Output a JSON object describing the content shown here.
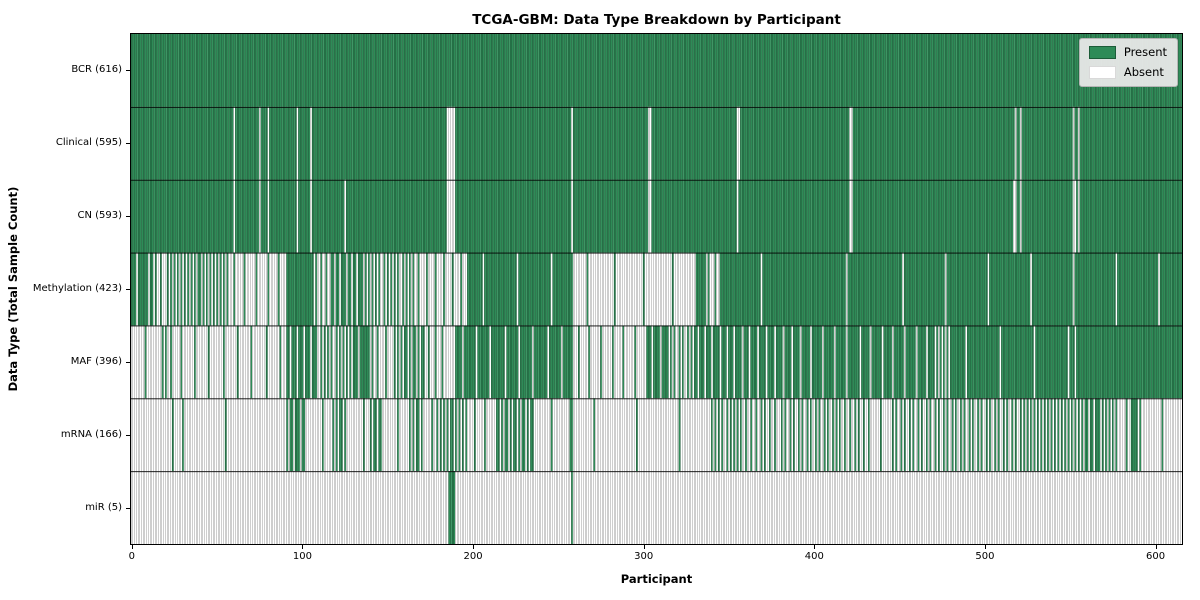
{
  "chart_data": {
    "type": "heatmap",
    "title": "TCGA-GBM: Data Type Breakdown by Participant",
    "xlabel": "Participant",
    "ylabel": "Data Type (Total Sample Count)",
    "x_ticks": [
      0,
      100,
      200,
      300,
      400,
      500,
      600
    ],
    "n_participants": 616,
    "grid": false,
    "colors": {
      "present": "#2e8b57",
      "absent": "#ffffff",
      "cell_edge": "rgba(0,0,0,0.38)",
      "row_separator": "#000000",
      "legend_bg": "#e8e8e8",
      "legend_border": "#b5b5b5"
    },
    "legend": {
      "position": "upper right",
      "items": [
        {
          "label": "Present",
          "color": "#2e8b57"
        },
        {
          "label": "Absent",
          "color": "#ffffff"
        }
      ]
    },
    "rows": [
      {
        "label": "BCR (616)",
        "name": "BCR",
        "present_count": 616,
        "runs": [
          [
            0,
            616,
            1
          ]
        ]
      },
      {
        "label": "Clinical (595)",
        "name": "Clinical",
        "present_count": 595,
        "absent": [
          60,
          75,
          80,
          97,
          105,
          185,
          186,
          187,
          188,
          189,
          258,
          303,
          304,
          355,
          356,
          421,
          422,
          518,
          521,
          552,
          555
        ]
      },
      {
        "label": "CN (593)",
        "name": "CN",
        "present_count": 593,
        "absent": [
          60,
          75,
          80,
          97,
          105,
          125,
          185,
          186,
          187,
          188,
          189,
          258,
          303,
          304,
          355,
          421,
          422,
          517,
          518,
          521,
          552,
          553,
          555
        ]
      },
      {
        "label": "Methylation (423)",
        "name": "Methylation",
        "present_count": 423,
        "runs": [
          [
            0,
            13,
            0.85
          ],
          [
            13,
            23,
            0.3
          ],
          [
            23,
            57,
            0.53
          ],
          [
            57,
            91,
            0.15
          ],
          [
            91,
            107,
            1
          ],
          [
            107,
            118,
            0.35
          ],
          [
            118,
            138,
            0.7
          ],
          [
            138,
            166,
            0.45
          ],
          [
            166,
            197,
            0.2
          ],
          [
            197,
            259,
            0.95
          ],
          [
            259,
            331,
            0.06
          ],
          [
            331,
            337,
            1
          ],
          [
            337,
            345,
            0.25
          ],
          [
            345,
            440,
            0.98
          ],
          [
            440,
            616,
            0.96
          ]
        ]
      },
      {
        "label": "MAF (396)",
        "name": "MAF",
        "present_count": 396,
        "runs": [
          [
            0,
            17,
            0.06
          ],
          [
            17,
            25,
            0.4
          ],
          [
            25,
            91,
            0.12
          ],
          [
            91,
            110,
            0.75
          ],
          [
            110,
            130,
            0.45
          ],
          [
            130,
            142,
            0.85
          ],
          [
            142,
            156,
            0.2
          ],
          [
            156,
            173,
            0.6
          ],
          [
            173,
            185,
            0.25
          ],
          [
            185,
            190,
            0
          ],
          [
            190,
            259,
            0.88
          ],
          [
            259,
            303,
            0.15
          ],
          [
            303,
            315,
            0.8
          ],
          [
            315,
            330,
            0.4
          ],
          [
            330,
            360,
            0.77
          ],
          [
            360,
            395,
            0.8
          ],
          [
            395,
            430,
            0.86
          ],
          [
            430,
            470,
            0.85
          ],
          [
            470,
            480,
            0.5
          ],
          [
            480,
            553,
            0.95
          ],
          [
            553,
            554,
            0
          ],
          [
            554,
            616,
            1
          ]
        ]
      },
      {
        "label": "mRNA (166)",
        "name": "mRNA",
        "present_count": 166,
        "runs": [
          [
            0,
            24,
            0
          ],
          [
            24,
            25,
            1
          ],
          [
            25,
            30,
            0
          ],
          [
            30,
            31,
            1
          ],
          [
            31,
            91,
            0.02
          ],
          [
            91,
            103,
            0.7
          ],
          [
            103,
            118,
            0.05
          ],
          [
            118,
            127,
            0.6
          ],
          [
            127,
            140,
            0.05
          ],
          [
            140,
            147,
            0.7
          ],
          [
            147,
            163,
            0.05
          ],
          [
            163,
            171,
            0.6
          ],
          [
            171,
            179,
            0.1
          ],
          [
            179,
            198,
            0.55
          ],
          [
            198,
            215,
            0.15
          ],
          [
            215,
            237,
            0.6
          ],
          [
            237,
            257,
            0.05
          ],
          [
            257,
            259,
            1
          ],
          [
            259,
            339,
            0.04
          ],
          [
            339,
            359,
            0.45
          ],
          [
            359,
            380,
            0.35
          ],
          [
            380,
            414,
            0.4
          ],
          [
            414,
            434,
            0.35
          ],
          [
            434,
            445,
            0.1
          ],
          [
            445,
            525,
            0.4
          ],
          [
            525,
            560,
            0.5
          ],
          [
            560,
            569,
            0.7
          ],
          [
            569,
            578,
            0.55
          ],
          [
            578,
            586,
            0.1
          ],
          [
            586,
            592,
            0.9
          ],
          [
            592,
            616,
            0.04
          ]
        ]
      },
      {
        "label": "miR (5)",
        "name": "miR",
        "present_count": 5,
        "runs": [
          [
            0,
            186,
            0
          ],
          [
            186,
            190,
            1
          ],
          [
            190,
            258,
            0
          ],
          [
            258,
            259,
            1
          ],
          [
            259,
            616,
            0
          ]
        ]
      }
    ]
  }
}
